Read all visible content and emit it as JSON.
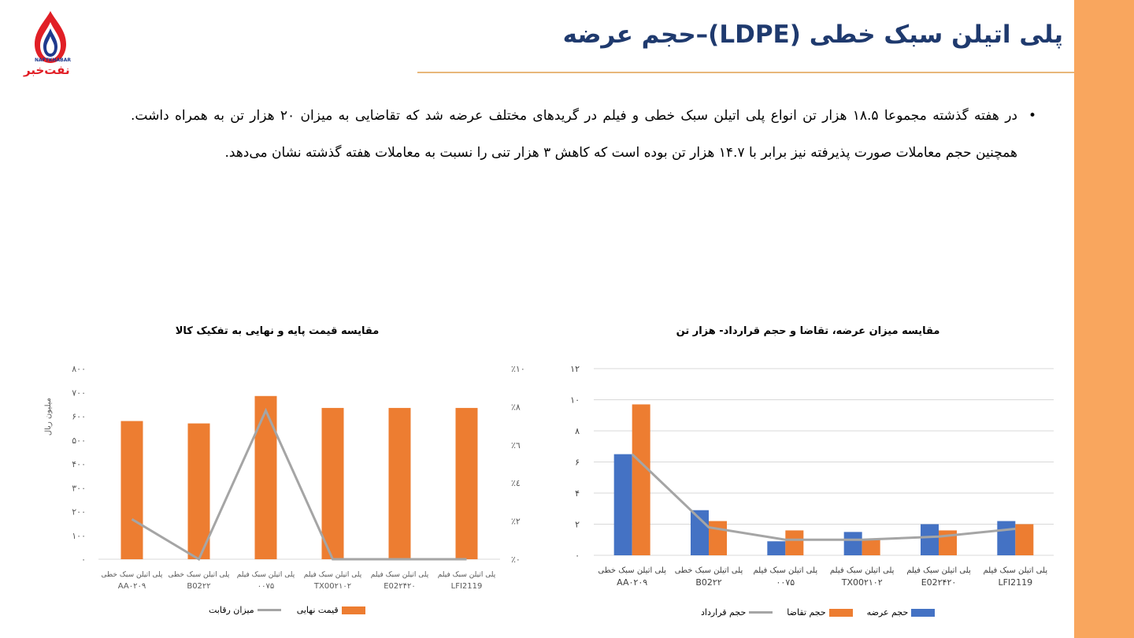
{
  "slide": {
    "title": "پلی اتیلن سبک خطی (LDPE)–حجم عرضه",
    "logo_text_en": "NAFTKHABAR",
    "logo_text_fa": "نفت‌خبر",
    "body_text": "در هفته گذشته مجموعا ۱۸.۵ هزار تن انواع پلی اتیلن سبک خطی و فیلم در گریدهای مختلف عرضه شد که تقاضایی به میزان ۲۰ هزار تن به همراه داشت. همچنین حجم معاملات صورت پذیرفته نیز برابر با ۱۴.۷ هزار تن بوده است که کاهش ۳ هزار تنی را نسبت به معاملات هفته گذشته نشان می‌دهد.",
    "bullet": "•"
  },
  "chart_data": [
    {
      "type": "bar",
      "title": "مقایسه قیمت پایه و نهایی به تفکیک کالا",
      "ylabel": "میلیون ریال",
      "categories": [
        {
          "line1": "پلی اتیلن سبک خطی",
          "line2": "AA۰۲۰۹"
        },
        {
          "line1": "پلی اتیلن سبک خطی",
          "line2": "B02۲۲"
        },
        {
          "line1": "پلی اتیلن سبک فیلم",
          "line2": "۰۰۷۵"
        },
        {
          "line1": "پلی اتیلن سبک فیلم",
          "line2": "TX00۲۱۰۲"
        },
        {
          "line1": "پلی اتیلن سبک فیلم",
          "line2": "E02۲۴۲۰"
        },
        {
          "line1": "پلی اتیلن سبک فیلم",
          "line2": "LFI2119"
        }
      ],
      "ylim": [
        0,
        800
      ],
      "yticks": [
        0,
        100,
        200,
        300,
        400,
        500,
        600,
        700,
        800
      ],
      "yticks_labels": [
        "۰",
        "۱۰۰",
        "۲۰۰",
        "۳۰۰",
        "۴۰۰",
        "۵۰۰",
        "۶۰۰",
        "۷۰۰",
        "۸۰۰"
      ],
      "y2lim": [
        0,
        10
      ],
      "y2ticks": [
        0,
        2,
        4,
        6,
        8,
        10
      ],
      "y2ticks_labels": [
        "٪۰",
        "٪۲",
        "٪٤",
        "٪٦",
        "٪۸",
        "٪۱۰"
      ],
      "series": [
        {
          "name": "قیمت نهایی",
          "kind": "bar",
          "axis": "left",
          "color": "#ED7D31",
          "values": [
            580,
            570,
            685,
            635,
            635,
            635
          ]
        },
        {
          "name": "میزان رقابت",
          "kind": "line",
          "axis": "right",
          "color": "#A5A5A5",
          "values": [
            2.1,
            0,
            7.8,
            0,
            0,
            0
          ]
        }
      ],
      "grid": false,
      "legend": "bottom"
    },
    {
      "type": "bar",
      "title": "مقایسه میزان عرضه، تقاضا و حجم قرارداد-  هزار تن",
      "categories": [
        {
          "line1": "پلی اتیلن سبک خطی",
          "line2": "AA۰۲۰۹"
        },
        {
          "line1": "پلی اتیلن سبک خطی",
          "line2": "B02۲۲"
        },
        {
          "line1": "پلی اتیلن سبک فیلم",
          "line2": "۰۰۷۵"
        },
        {
          "line1": "پلی اتیلن سبک فیلم",
          "line2": "TX00۲۱۰۲"
        },
        {
          "line1": "پلی اتیلن سبک فیلم",
          "line2": "E02۲۴۲۰"
        },
        {
          "line1": "پلی اتیلن سبک فیلم",
          "line2": "LFI2119"
        }
      ],
      "ylim": [
        0,
        12
      ],
      "yticks": [
        0,
        2,
        4,
        6,
        8,
        10,
        12
      ],
      "yticks_labels": [
        "۰",
        "۲",
        "۴",
        "۶",
        "۸",
        "۱۰",
        "۱۲"
      ],
      "series": [
        {
          "name": "حجم عرضه",
          "kind": "bar",
          "color": "#4472C4",
          "values": [
            6.5,
            2.9,
            0.9,
            1.5,
            2.0,
            2.2
          ]
        },
        {
          "name": "حجم تقاضا",
          "kind": "bar",
          "color": "#ED7D31",
          "values": [
            9.7,
            2.2,
            1.6,
            1.0,
            1.6,
            2.0
          ]
        },
        {
          "name": "حجم قرارداد",
          "kind": "line",
          "color": "#A5A5A5",
          "values": [
            6.5,
            1.8,
            1.0,
            1.0,
            1.2,
            1.7
          ]
        }
      ],
      "grid": true,
      "legend": "bottom"
    }
  ]
}
